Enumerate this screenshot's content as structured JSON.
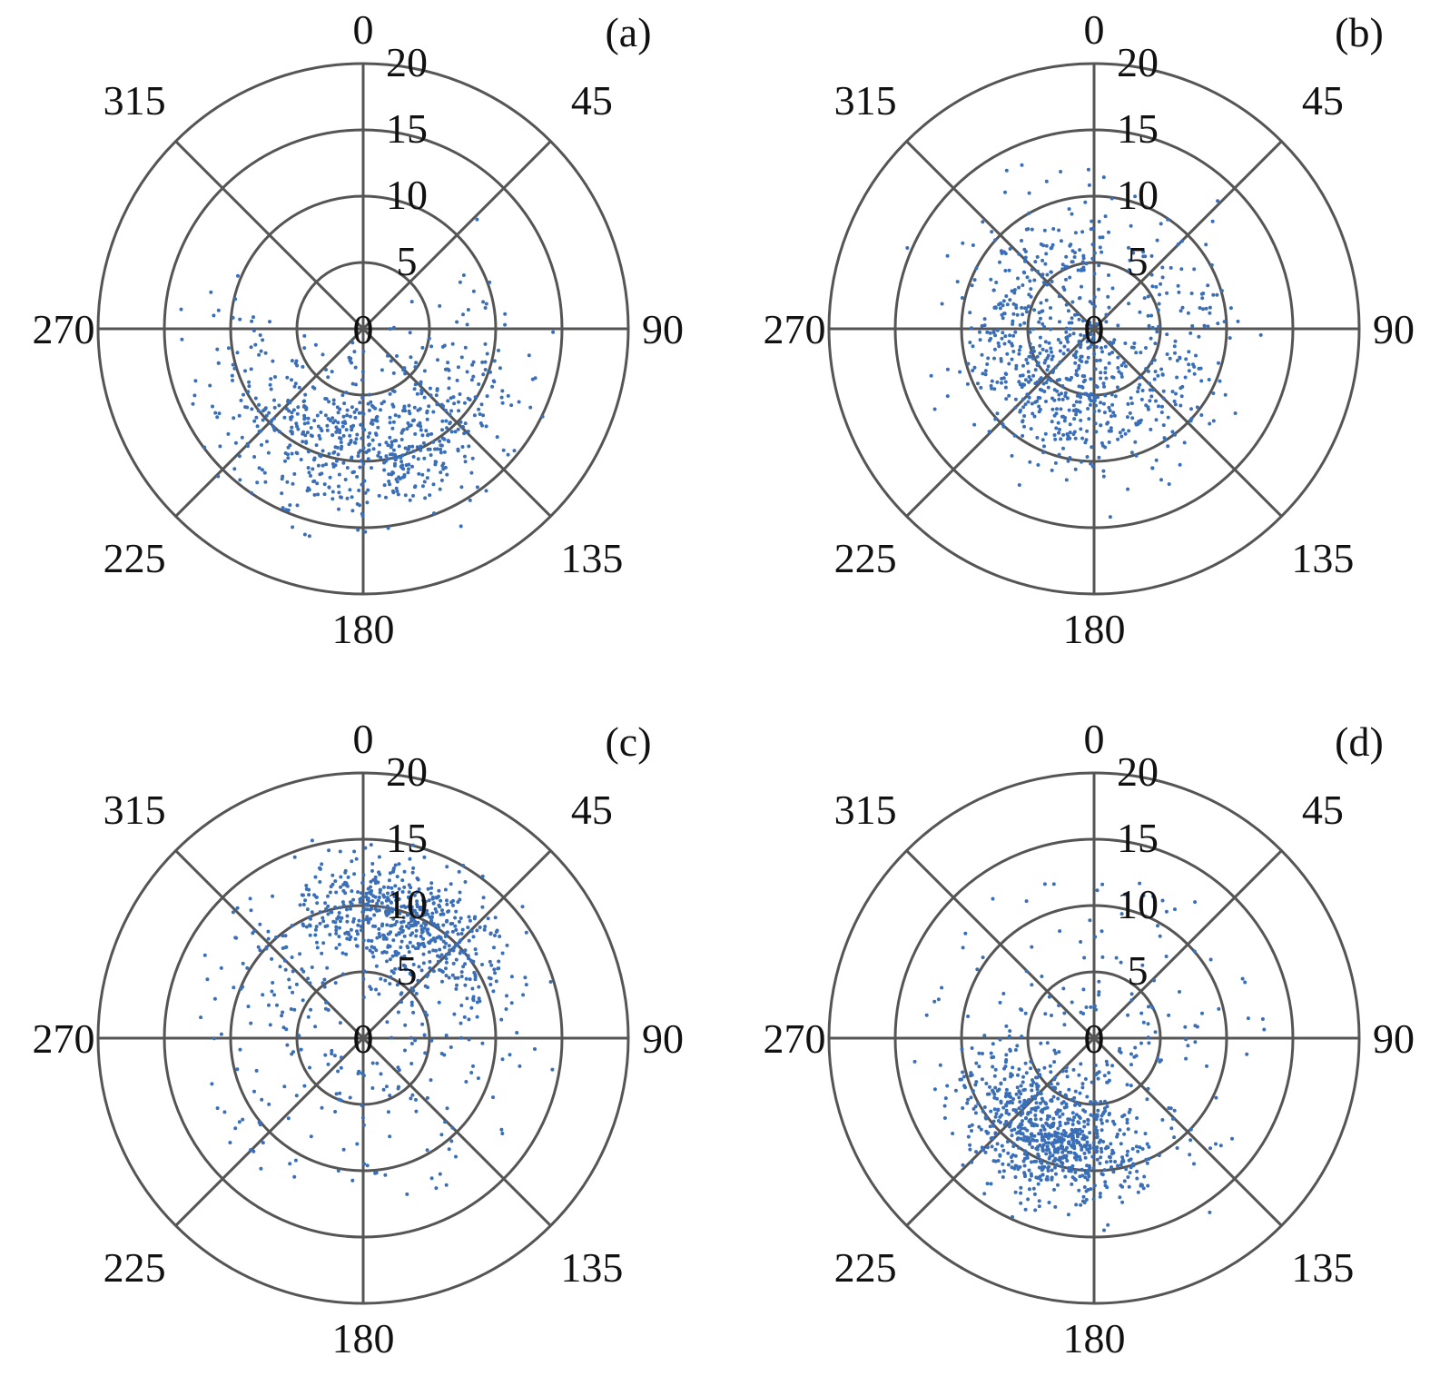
{
  "chart_data": [
    {
      "panel_label": "(a)",
      "type": "scatter",
      "coordinate_system": "polar",
      "theta_direction": "clockwise",
      "theta_zero": "top",
      "angle_ticks": [
        "0",
        "45",
        "90",
        "135",
        "180",
        "225",
        "270",
        "315"
      ],
      "radial_ticks": [
        "0",
        "5",
        "10",
        "15",
        "20"
      ],
      "rlim": [
        0,
        20
      ],
      "series_color": "#3a6fb8",
      "cluster": {
        "mean_angle": 178,
        "angle_sd": 45,
        "mean_r": 9.5,
        "r_sd": 2.6,
        "count": 700
      }
    },
    {
      "panel_label": "(b)",
      "type": "scatter",
      "coordinate_system": "polar",
      "theta_direction": "clockwise",
      "theta_zero": "top",
      "angle_ticks": [
        "0",
        "45",
        "90",
        "135",
        "180",
        "225",
        "270",
        "315"
      ],
      "radial_ticks": [
        "0",
        "5",
        "10",
        "15",
        "20"
      ],
      "rlim": [
        0,
        20
      ],
      "series_color": "#3a6fb8",
      "cluster": {
        "mean_angle": 215,
        "angle_sd": 85,
        "mean_r": 6.5,
        "r_sd": 2.8,
        "count": 800
      }
    },
    {
      "panel_label": "(c)",
      "type": "scatter",
      "coordinate_system": "polar",
      "theta_direction": "clockwise",
      "theta_zero": "top",
      "angle_ticks": [
        "0",
        "45",
        "90",
        "135",
        "180",
        "225",
        "270",
        "315"
      ],
      "radial_ticks": [
        "0",
        "5",
        "10",
        "15",
        "20"
      ],
      "rlim": [
        0,
        20
      ],
      "series_color": "#3a6fb8",
      "cluster": {
        "mean_angle": 18,
        "angle_sd": 28,
        "mean_r": 10,
        "r_sd": 2.0,
        "count": 600,
        "scatter_count": 250
      }
    },
    {
      "panel_label": "(d)",
      "type": "scatter",
      "coordinate_system": "polar",
      "theta_direction": "clockwise",
      "theta_zero": "top",
      "angle_ticks": [
        "0",
        "45",
        "90",
        "135",
        "180",
        "225",
        "270",
        "315"
      ],
      "radial_ticks": [
        "0",
        "5",
        "10",
        "15",
        "20"
      ],
      "rlim": [
        0,
        20
      ],
      "series_color": "#3a6fb8",
      "cluster": {
        "mean_angle": 205,
        "angle_sd": 25,
        "mean_r": 8.5,
        "r_sd": 2.2,
        "count": 750,
        "scatter_count": 200
      }
    }
  ]
}
